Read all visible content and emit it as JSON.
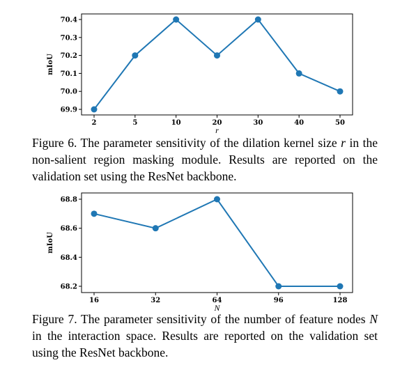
{
  "figures": [
    {
      "caption_prefix": "Figure 6. The parameter sensitivity of the dilation kernel size ",
      "caption_math": "r",
      "caption_suffix": " in the non-salient region masking module. Results are reported on the validation set using the ResNet backbone."
    },
    {
      "caption_prefix": "Figure 7. The parameter sensitivity of the number of feature nodes ",
      "caption_math": "N",
      "caption_suffix": " in the interaction space. Results are reported on the validation set using the ResNet backbone."
    }
  ],
  "chart_data": [
    {
      "type": "line",
      "x": [
        "2",
        "5",
        "10",
        "20",
        "30",
        "40",
        "50"
      ],
      "values": [
        69.9,
        70.2,
        70.4,
        70.2,
        70.4,
        70.1,
        70.0
      ],
      "xlabel": "r",
      "ylabel": "mIoU",
      "yticks": [
        "69.9",
        "70.0",
        "70.1",
        "70.2",
        "70.3",
        "70.4"
      ],
      "ylim": [
        69.9,
        70.4
      ],
      "grid": false,
      "color": "#1f77b4"
    },
    {
      "type": "line",
      "x": [
        "16",
        "32",
        "64",
        "96",
        "128"
      ],
      "values": [
        68.7,
        68.6,
        68.8,
        68.2,
        68.2
      ],
      "xlabel": "N",
      "ylabel": "mIoU",
      "yticks": [
        "68.2",
        "68.4",
        "68.6",
        "68.8"
      ],
      "ylim": [
        68.2,
        68.8
      ],
      "grid": false,
      "color": "#1f77b4"
    }
  ]
}
